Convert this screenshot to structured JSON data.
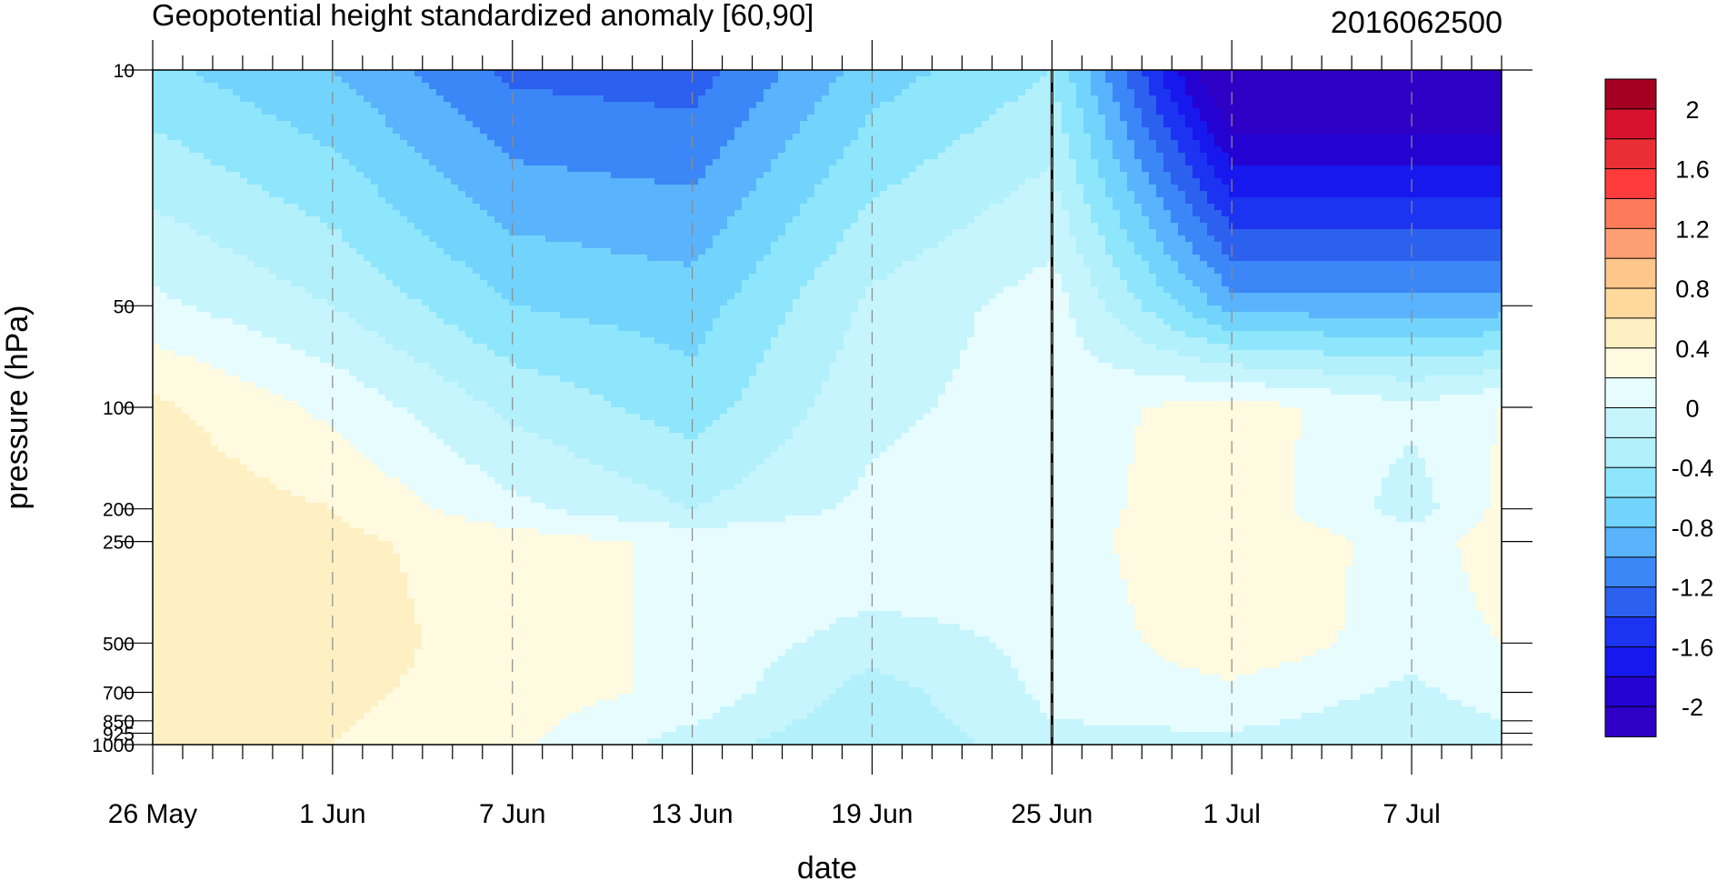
{
  "chart_data": {
    "type": "heatmap",
    "title": "Geopotential height standardized anomaly [60,90]",
    "timestamp": "2016062500",
    "xlabel": "date",
    "ylabel": "pressure (hPa)",
    "x_ticks": [
      "26 May",
      "1 Jun",
      "7 Jun",
      "13 Jun",
      "19 Jun",
      "25 Jun",
      "1 Jul",
      "7 Jul"
    ],
    "x_range": [
      "26 May",
      "10 Jul"
    ],
    "y_scale": "log",
    "y_reversed": true,
    "y_range": [
      1000,
      10
    ],
    "y_ticks": [
      10,
      50,
      100,
      200,
      250,
      500,
      700,
      850,
      925,
      1000
    ],
    "current_date_marker": "25 Jun",
    "colorbar": {
      "labels": [
        "2",
        "1.6",
        "1.2",
        "0.8",
        "0.4",
        "0",
        "-0.4",
        "-0.8",
        "-1.2",
        "-1.6",
        "-2"
      ],
      "level_edges": [
        2.2,
        2.0,
        1.8,
        1.6,
        1.4,
        1.2,
        1.0,
        0.8,
        0.6,
        0.4,
        0.2,
        0.0,
        -0.2,
        -0.4,
        -0.6,
        -0.8,
        -1.0,
        -1.2,
        -1.4,
        -1.6,
        -1.8,
        -2.0,
        -2.2
      ],
      "colors": [
        "#a50021",
        "#d6122c",
        "#ea2e35",
        "#ff3b3b",
        "#ff7a5a",
        "#fe9e73",
        "#ffc68b",
        "#ffd89c",
        "#fff0c3",
        "#fffae0",
        "#e7fcff",
        "#c6f5fe",
        "#b2f0fb",
        "#8ee6fc",
        "#72d4fc",
        "#59b3fd",
        "#3b87f7",
        "#2c60ef",
        "#1c33f1",
        "#1718ed",
        "#2402d1",
        "#2e00c6"
      ]
    },
    "anomaly_grid": {
      "columns": [
        "26 May",
        "1 Jun",
        "7 Jun",
        "13 Jun",
        "19 Jun",
        "25 Jun",
        "1 Jul",
        "7 Jul",
        "10 Jul"
      ],
      "pressure_levels": [
        10,
        50,
        100,
        200,
        250,
        500,
        700,
        1000
      ],
      "values": [
        [
          -0.55,
          -0.8,
          -1.25,
          -1.3,
          -0.7,
          -0.4,
          -2.4,
          -2.4,
          -2.4
        ],
        [
          0.05,
          -0.2,
          -0.6,
          -0.7,
          -0.15,
          0.1,
          -0.9,
          -0.9,
          -0.9
        ],
        [
          0.45,
          0.15,
          -0.25,
          -0.5,
          -0.05,
          0.1,
          0.3,
          0.05,
          0.2
        ],
        [
          0.55,
          0.4,
          0.05,
          -0.2,
          0.05,
          0.1,
          0.35,
          -0.1,
          0.25
        ],
        [
          0.6,
          0.45,
          0.3,
          0.15,
          0.2,
          0.1,
          0.4,
          0.1,
          0.3
        ],
        [
          0.6,
          0.5,
          0.3,
          0.15,
          -0.1,
          0.05,
          0.35,
          0.1,
          0.2
        ],
        [
          0.6,
          0.45,
          0.3,
          0.15,
          -0.3,
          0.05,
          0.15,
          -0.05,
          0.1
        ],
        [
          0.55,
          0.4,
          0.25,
          -0.1,
          -0.4,
          -0.05,
          -0.05,
          -0.15,
          -0.1
        ]
      ]
    },
    "grid": false,
    "legend": "right"
  }
}
